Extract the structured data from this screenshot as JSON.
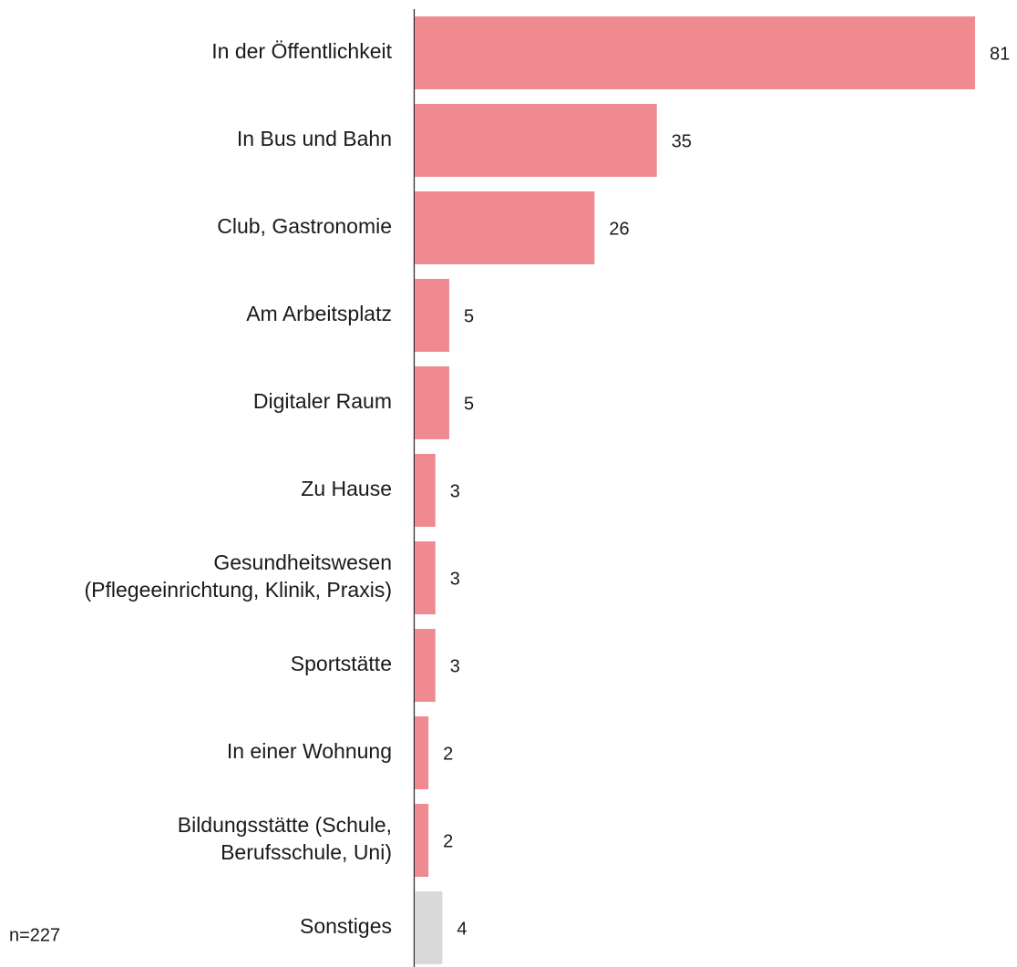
{
  "chart_data": {
    "type": "barh",
    "categories": [
      "In der Öffentlichkeit",
      "In Bus und Bahn",
      "Club, Gastronomie",
      "Am Arbeitsplatz",
      "Digitaler Raum",
      "Zu Hause",
      [
        "Gesundheitswesen",
        "(Pflegeeinrichtung, Klinik, Praxis)"
      ],
      "Sportstätte",
      "In einer Wohnung",
      [
        "Bildungsstätte (Schule,",
        "Berufsschule, Uni)"
      ],
      "Sonstiges"
    ],
    "values": [
      81,
      35,
      26,
      5,
      5,
      3,
      3,
      3,
      2,
      2,
      4
    ],
    "colors": [
      "#ee8a90",
      "#ee8a90",
      "#ee8a90",
      "#ee8a90",
      "#ee8a90",
      "#ee8a90",
      "#ee8a90",
      "#ee8a90",
      "#ee8a90",
      "#ee8a90",
      "#d9d9d9"
    ],
    "annotation": "n=227"
  }
}
